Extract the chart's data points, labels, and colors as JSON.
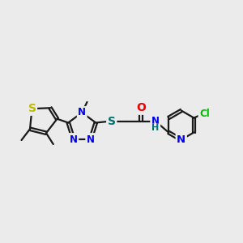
{
  "bg_color": "#ebebeb",
  "atom_colors": {
    "C": "#1a1a1a",
    "N": "#0000ee",
    "O": "#ee0000",
    "S_yellow": "#bbbb00",
    "S_teal": "#007070",
    "Cl": "#00bb00",
    "H": "#007070"
  },
  "bond_color": "#1a1a1a",
  "bond_width": 1.6,
  "font_size": 8.5,
  "fig_size": [
    3.0,
    3.0
  ],
  "dpi": 100,
  "xlim": [
    0,
    12
  ],
  "ylim": [
    2,
    9
  ]
}
